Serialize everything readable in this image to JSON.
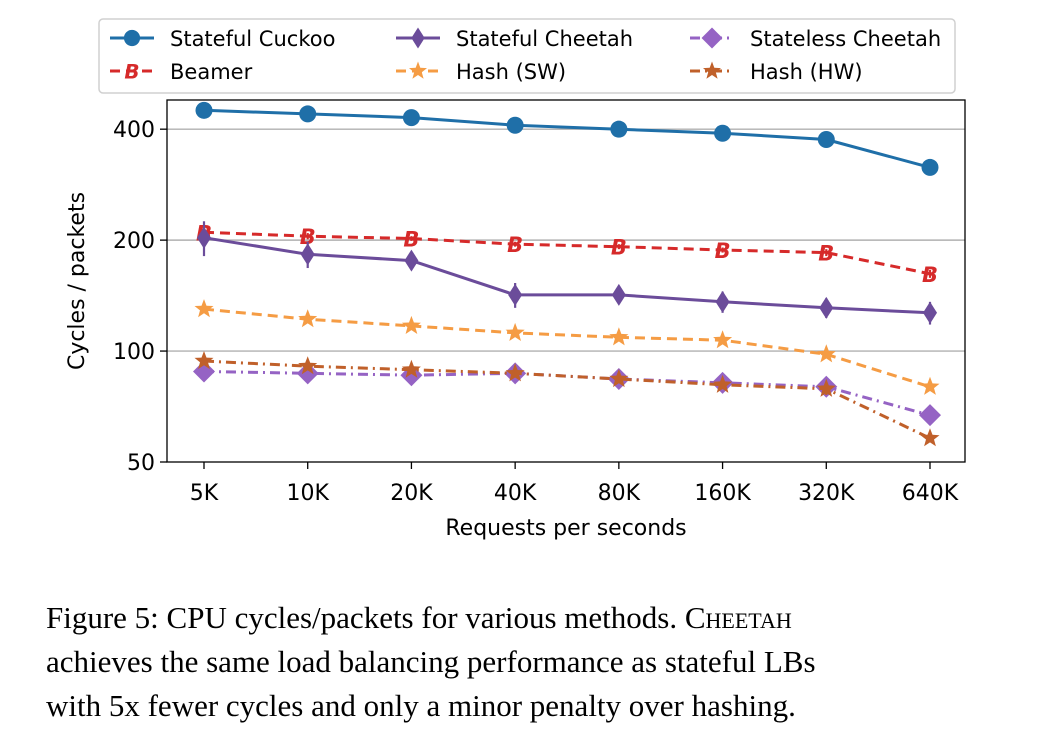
{
  "chart_data": {
    "type": "line",
    "xlabel": "Requests per seconds",
    "ylabel": "Cycles / packets",
    "y_scale": "log",
    "ylim": [
      50,
      480
    ],
    "yticks": [
      400,
      200,
      100,
      50
    ],
    "categories": [
      "5K",
      "10K",
      "20K",
      "40K",
      "80K",
      "160K",
      "320K",
      "640K"
    ],
    "grid": "horizontal",
    "legend_position": "top",
    "series": [
      {
        "name": "Stateful Cuckoo",
        "color": "#1f6fa8",
        "marker": "circle",
        "dash": "solid",
        "values": [
          450,
          440,
          430,
          410,
          400,
          390,
          375,
          315
        ],
        "errors": [
          0,
          0,
          0,
          0,
          0,
          0,
          0,
          0
        ]
      },
      {
        "name": "Beamer",
        "color": "#d62a2a",
        "marker": "B",
        "dash": "dashed",
        "values": [
          210,
          205,
          202,
          195,
          192,
          188,
          185,
          162
        ],
        "errors": [
          6,
          4,
          3,
          3,
          3,
          3,
          4,
          4
        ]
      },
      {
        "name": "Stateful Cheetah",
        "color": "#6b4c9a",
        "marker": "diamond-thin",
        "dash": "solid",
        "values": [
          203,
          183,
          176,
          142,
          142,
          136,
          131,
          127
        ],
        "errors": [
          22,
          15,
          6,
          11,
          7,
          9,
          8,
          9
        ]
      },
      {
        "name": "Hash (SW)",
        "color": "#f59c44",
        "marker": "star",
        "dash": "dashed",
        "values": [
          130,
          122,
          117,
          112,
          109,
          107,
          98,
          80
        ],
        "errors": [
          2,
          2,
          2,
          2,
          2,
          2,
          2,
          2
        ]
      },
      {
        "name": "Stateless Cheetah",
        "color": "#9563c4",
        "marker": "diamond",
        "dash": "dashdot",
        "values": [
          88,
          87,
          86,
          87,
          84,
          82,
          80,
          67
        ],
        "errors": [
          2,
          2,
          2,
          5,
          2,
          2,
          2,
          2
        ]
      },
      {
        "name": "Hash (HW)",
        "color": "#c0602a",
        "marker": "star",
        "dash": "dashdot",
        "values": [
          94,
          91,
          89,
          87,
          84,
          81,
          79,
          58
        ],
        "errors": [
          1,
          1,
          1,
          1,
          1,
          1,
          3,
          1
        ]
      }
    ]
  },
  "caption": {
    "line1_prefix": "Figure 5: CPU cycles/packets for various methods. ",
    "line1_name": "Cheetah",
    "line2": "achieves the same load balancing performance as stateful LBs",
    "line3": "with 5x fewer cycles and only a minor penalty over hashing."
  }
}
